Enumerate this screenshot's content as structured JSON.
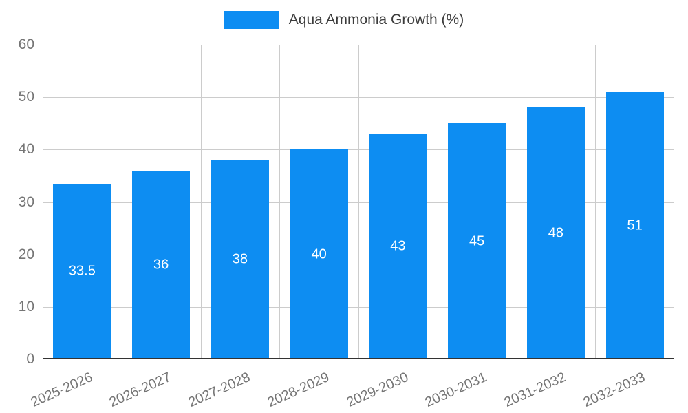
{
  "legend": {
    "label": "Aqua Ammonia Growth (%)",
    "position": "top"
  },
  "chart_data": {
    "type": "bar",
    "title": "Aqua Ammonia Growth (%)",
    "categories": [
      "2025-2026",
      "2026-2027",
      "2027-2028",
      "2028-2029",
      "2029-2030",
      "2030-2031",
      "2031-2032",
      "2032-2033"
    ],
    "values": [
      33.5,
      36,
      38,
      40,
      43,
      45,
      48,
      51
    ],
    "xlabel": "",
    "ylabel": "",
    "ylim": [
      0,
      60
    ],
    "yticks": [
      0,
      10,
      20,
      30,
      40,
      50,
      60
    ],
    "grid": true,
    "legend_position": "top",
    "bar_color": "#0d8df2",
    "value_label_color": "#ffffff",
    "tick_label_color": "#757575",
    "gridline_color": "#cccccc",
    "axis_line_color": "#333333"
  }
}
